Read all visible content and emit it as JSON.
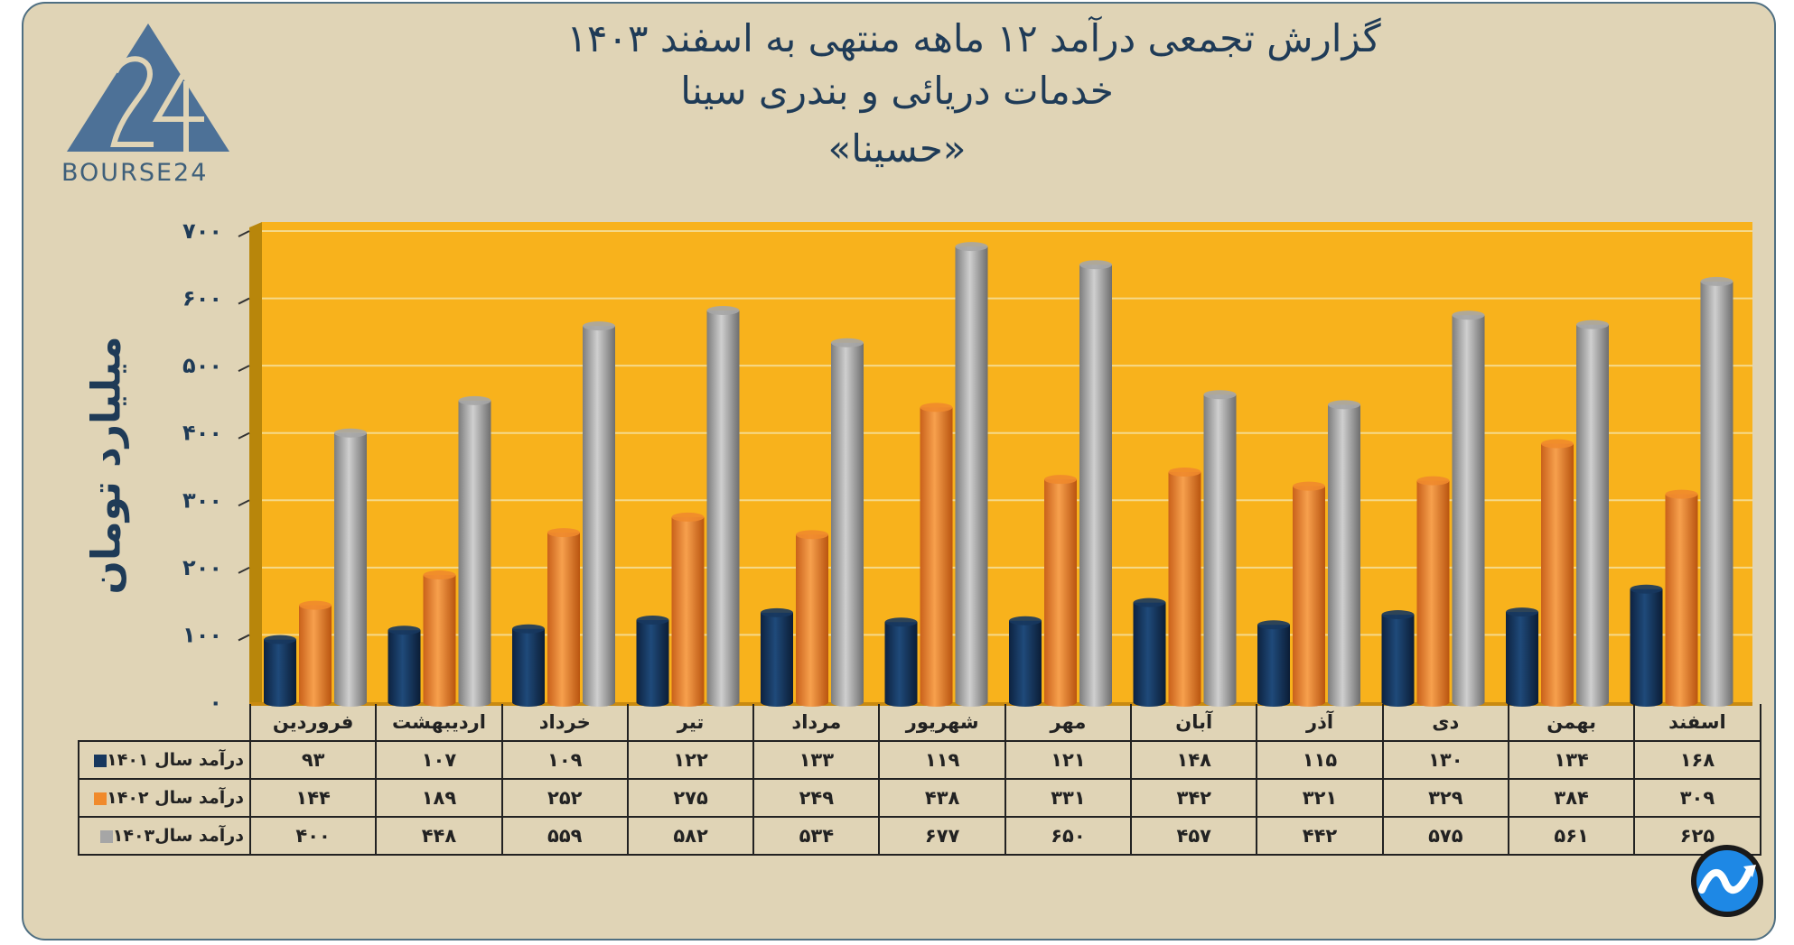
{
  "header": {
    "title_line1": "گزارش تجمعی درآمد ۱۲ ماهه منتهی به اسفند ۱۴۰۳",
    "title_line2": "خدمات دریائی و بندری سینا",
    "title_line3": "«حسینا»"
  },
  "logo": {
    "text": "BOURSE24",
    "icon": "bourse24-logo"
  },
  "corner_icon": "chart-trend-icon",
  "chart_data": {
    "type": "bar",
    "ylabel": "میلیارد تومان",
    "ylim": [
      0,
      700
    ],
    "y_ticks": [
      "۰",
      "۱۰۰",
      "۲۰۰",
      "۳۰۰",
      "۴۰۰",
      "۵۰۰",
      "۶۰۰",
      "۷۰۰"
    ],
    "grid": true,
    "categories": [
      "فروردین",
      "اردیبهشت",
      "خرداد",
      "تیر",
      "مرداد",
      "شهریور",
      "مهر",
      "آبان",
      "آذر",
      "دی",
      "بهمن",
      "اسفند"
    ],
    "series": [
      {
        "name": "درآمد سال ۱۴۰۱",
        "color": "#17375e",
        "values": [
          93,
          107,
          109,
          122,
          133,
          119,
          121,
          148,
          115,
          130,
          134,
          168
        ],
        "labels": [
          "۹۳",
          "۱۰۷",
          "۱۰۹",
          "۱۲۲",
          "۱۳۳",
          "۱۱۹",
          "۱۲۱",
          "۱۴۸",
          "۱۱۵",
          "۱۳۰",
          "۱۳۴",
          "۱۶۸"
        ]
      },
      {
        "name": "درآمد سال ۱۴۰۲",
        "color": "#f08a2c",
        "values": [
          144,
          189,
          252,
          275,
          249,
          438,
          331,
          342,
          321,
          329,
          384,
          309
        ],
        "labels": [
          "۱۴۴",
          "۱۸۹",
          "۲۵۲",
          "۲۷۵",
          "۲۴۹",
          "۴۳۸",
          "۳۳۱",
          "۳۴۲",
          "۳۲۱",
          "۳۲۹",
          "۳۸۴",
          "۳۰۹"
        ]
      },
      {
        "name": "درآمد سال۱۴۰۳",
        "color": "#a6a6a6",
        "values": [
          400,
          448,
          559,
          582,
          534,
          677,
          650,
          457,
          442,
          575,
          561,
          625
        ],
        "labels": [
          "۴۰۰",
          "۴۴۸",
          "۵۵۹",
          "۵۸۲",
          "۵۳۴",
          "۶۷۷",
          "۶۵۰",
          "۴۵۷",
          "۴۴۲",
          "۵۷۵",
          "۵۶۱",
          "۶۲۵"
        ]
      }
    ],
    "background_color": "#f8b21c"
  }
}
